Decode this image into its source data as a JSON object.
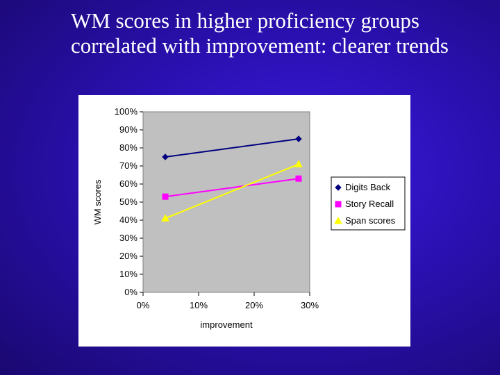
{
  "slide": {
    "title": "WM scores in higher proficiency groups correlated with improvement: clearer trends"
  },
  "chart_data": {
    "type": "line",
    "xlabel": "improvement",
    "ylabel": "WM scores",
    "xlim": [
      0,
      30
    ],
    "ylim": [
      0,
      100
    ],
    "x_ticks": [
      "0%",
      "10%",
      "20%",
      "30%"
    ],
    "y_ticks": [
      "0%",
      "10%",
      "20%",
      "30%",
      "40%",
      "50%",
      "60%",
      "70%",
      "80%",
      "90%",
      "100%"
    ],
    "legend_position": "right",
    "grid": false,
    "series": [
      {
        "name": "Digits Back",
        "marker": "diamond",
        "color": "#000080",
        "x": [
          4,
          28
        ],
        "y": [
          75,
          85
        ]
      },
      {
        "name": "Story Recall",
        "marker": "square",
        "color": "#ff00ff",
        "x": [
          4,
          28
        ],
        "y": [
          53,
          63
        ]
      },
      {
        "name": "Span scores",
        "marker": "triangle",
        "color": "#ffff00",
        "x": [
          4,
          28
        ],
        "y": [
          41,
          71
        ]
      }
    ]
  }
}
